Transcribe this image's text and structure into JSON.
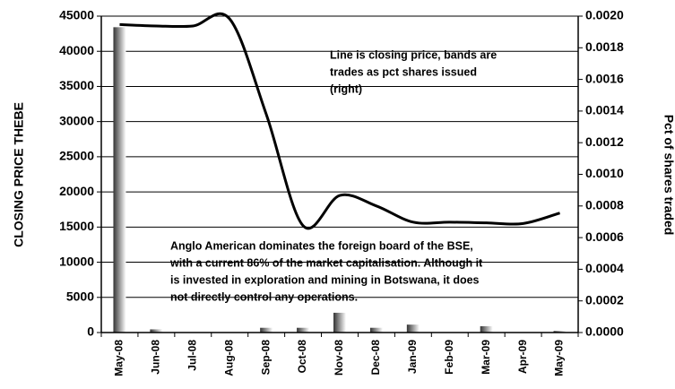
{
  "chart_data": {
    "type": "bar-line",
    "categories": [
      "May-08",
      "Jun-08",
      "Jul-08",
      "Aug-08",
      "Sep-08",
      "Oct-08",
      "Nov-08",
      "Dec-08",
      "Jan-09",
      "Feb-09",
      "Mar-09",
      "Apr-09",
      "May-09"
    ],
    "series": [
      {
        "name": "Closing price",
        "color": "#000000",
        "type": "line",
        "values": [
          43800,
          43600,
          43600,
          44600,
          31000,
          15200,
          19500,
          18000,
          15700,
          15700,
          15600,
          15500,
          17000
        ]
      },
      {
        "name": "Pct of shares traded",
        "color": "#555555",
        "type": "bar",
        "axis": "y2",
        "values": [
          0.00193,
          2e-05,
          0,
          0,
          3e-05,
          3e-05,
          0.000125,
          3e-05,
          5e-05,
          0,
          4e-05,
          0,
          1e-05
        ]
      }
    ],
    "ylabel": "CLOSING PRICE THEBE",
    "y2label": "Pct of shares traded",
    "ylim": [
      0,
      45000
    ],
    "yticks": [
      0,
      5000,
      10000,
      15000,
      20000,
      25000,
      30000,
      35000,
      40000,
      45000
    ],
    "y2lim": [
      0,
      0.002
    ],
    "y2ticks": [
      {
        "value": 0,
        "label": "0.0000"
      },
      {
        "value": 0.0002,
        "label": "0.0002"
      },
      {
        "value": 0.0004,
        "label": "0.0004"
      },
      {
        "value": 0.0006,
        "label": "0.0006"
      },
      {
        "value": 0.0008,
        "label": "0.0008"
      },
      {
        "value": 0.001,
        "label": "0.0010"
      },
      {
        "value": 0.0012,
        "label": "0.0012"
      },
      {
        "value": 0.0014,
        "label": "0.0014"
      },
      {
        "value": 0.0016,
        "label": "0.0016"
      },
      {
        "value": 0.0018,
        "label": "0.0018"
      },
      {
        "value": 0.002,
        "label": "0.0020"
      }
    ],
    "grid": true,
    "annotations": [
      {
        "lines": [
          "Line is closing price, bands are",
          "trades as pct shares issued",
          "(right)"
        ]
      },
      {
        "lines": [
          "Anglo American dominates the foreign board of the BSE,",
          "with a current 86% of the market capitalisation. Although it",
          "is invested in exploration and mining in Botswana, it does",
          "not directly control any operations."
        ]
      }
    ]
  }
}
